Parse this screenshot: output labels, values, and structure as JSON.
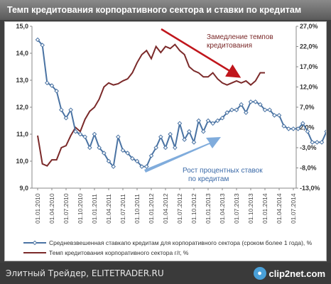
{
  "window": {
    "title": "Темп кредитования корпоративного сектора и ставки по кредитам"
  },
  "footer": {
    "site": "Элитный Трейдер, ELITETRADER.RU",
    "brand": "clip2net.com"
  },
  "colors": {
    "rate": "#4a73a3",
    "growth": "#7b2a2a",
    "arrow_red": "#c0161c",
    "arrow_blue": "#6a9dd6"
  },
  "chart_data": {
    "type": "line",
    "title": "",
    "x_tick_labels": [
      "01.01.2010",
      "01.04.2010",
      "01.07.2010",
      "01.10.2010",
      "01.01.2011",
      "01.04.2011",
      "01.07.2011",
      "01.10.2011",
      "01.01.2012",
      "01.04.2012",
      "01.07.2012",
      "01.10.2012",
      "01.01.2013",
      "01.04.2013",
      "01.07.2013",
      "01.10.2013",
      "01.01.2014",
      "01.04.2014",
      "01.07.2014"
    ],
    "y_left": {
      "ticks": [
        "9,0",
        "10,0",
        "11,0",
        "12,0",
        "13,0",
        "14,0",
        "15,0"
      ],
      "ylim": [
        9,
        15
      ]
    },
    "y_right": {
      "ticks": [
        "-13,0%",
        "-8,0%",
        "-3,0%",
        "2,0%",
        "7,0%",
        "12,0%",
        "17,0%",
        "22,0%",
        "27,0%"
      ],
      "ylim": [
        -13,
        27
      ]
    },
    "series": [
      {
        "name": "Средневзвешенная ставкапо кредитам для корпоративного сектора (сроком более 1 года), %",
        "axis": "left",
        "values": [
          14.5,
          14.3,
          12.9,
          12.8,
          12.6,
          11.9,
          11.6,
          11.9,
          11.1,
          11.0,
          10.9,
          10.5,
          11.0,
          10.5,
          10.3,
          10.0,
          9.8,
          10.9,
          10.4,
          10.3,
          10.1,
          10.0,
          9.8,
          9.8,
          10.2,
          10.5,
          10.9,
          10.5,
          11.0,
          10.5,
          11.4,
          10.8,
          11.1,
          10.7,
          11.5,
          11.1,
          11.5,
          11.4,
          11.5,
          11.6,
          11.8,
          11.9,
          11.9,
          12.1,
          11.8,
          12.2,
          12.2,
          12.1,
          11.9,
          11.9,
          11.7,
          11.7,
          11.3,
          11.2,
          11.2,
          11.2,
          11.4,
          11.1,
          10.7,
          10.7,
          10.7,
          11.1,
          10.6
        ],
        "note_x": "monthly points, Jan 2010 – Mar 2014 (approx.)"
      },
      {
        "name": "Темп кредитования корпоративного сектора г/г, %",
        "axis": "right",
        "values": [
          0.0,
          -7.0,
          -7.5,
          -6.0,
          -6.0,
          -3.0,
          -2.5,
          0.0,
          2.0,
          1.0,
          4.0,
          6.0,
          7.0,
          9.0,
          12.0,
          13.0,
          12.5,
          12.8,
          13.5,
          14.0,
          15.5,
          18.0,
          20.0,
          21.0,
          19.0,
          22.0,
          20.5,
          22.0,
          21.5,
          22.5,
          21.0,
          20.0,
          17.0,
          16.0,
          15.5,
          14.5,
          14.5,
          15.5,
          14.0,
          13.0,
          12.5,
          13.0,
          13.5,
          13.0,
          13.5,
          12.5,
          13.5,
          15.5,
          15.5
        ]
      }
    ],
    "annotations": [
      "Замедление темпов кредитования",
      "Рост процентных ставок по кредитам"
    ],
    "legend": "bottom",
    "grid": false
  }
}
